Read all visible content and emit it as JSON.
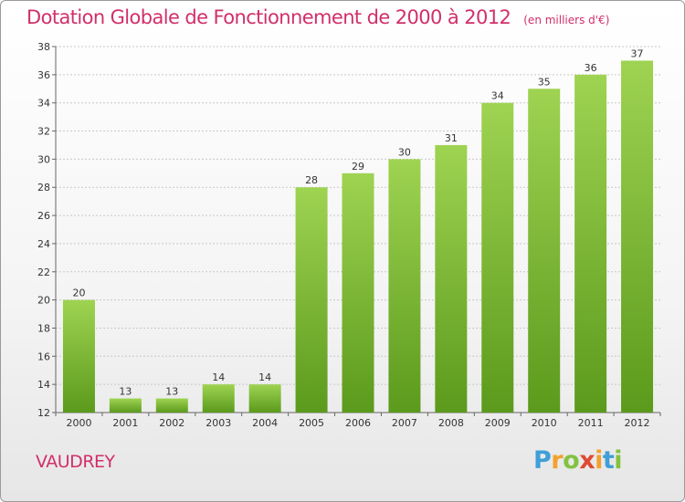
{
  "header": {
    "title": "Dotation Globale de Fonctionnement de 2000 à 2012",
    "unit": "(en milliers d'€)"
  },
  "footer": {
    "place": "VAUDREY",
    "logo": "Proxiti"
  },
  "colors": {
    "title": "#d12f6a",
    "bar_top": "#9fd352",
    "bar_bottom": "#5b9a1c",
    "grid": "#c8c8c8"
  },
  "chart_data": {
    "type": "bar",
    "title": "Dotation Globale de Fonctionnement de 2000 à 2012",
    "subtitle": "(en milliers d'€)",
    "xlabel": "",
    "ylabel": "",
    "categories": [
      "2000",
      "2001",
      "2002",
      "2003",
      "2004",
      "2005",
      "2006",
      "2007",
      "2008",
      "2009",
      "2010",
      "2011",
      "2012"
    ],
    "values": [
      20,
      13,
      13,
      14,
      14,
      28,
      29,
      30,
      31,
      34,
      35,
      36,
      37
    ],
    "ylim": [
      12,
      38
    ],
    "yticks": [
      12,
      14,
      16,
      18,
      20,
      22,
      24,
      26,
      28,
      30,
      32,
      34,
      36,
      38
    ],
    "grid": true,
    "data_labels": true
  }
}
